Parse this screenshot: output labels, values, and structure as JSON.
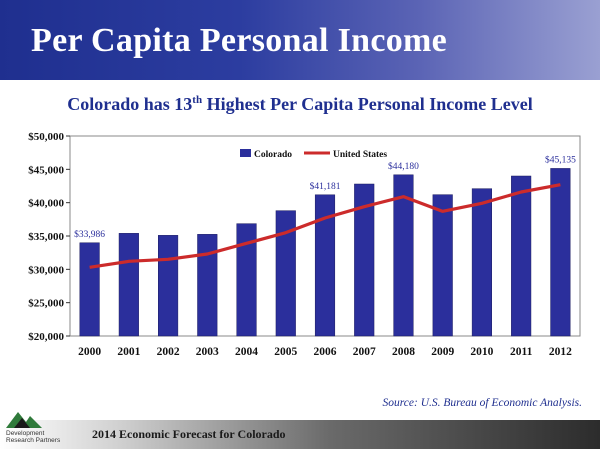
{
  "header": {
    "title": "Per Capita Personal Income"
  },
  "subtitle": {
    "prefix": "Colorado has 13",
    "sup": "th",
    "suffix": " Highest Per Capita Personal Income Level"
  },
  "source": "Source: U.S. Bureau of Economic Analysis.",
  "footer": {
    "text": "2014 Economic Forecast for Colorado",
    "logo_text": "Development Research Partners"
  },
  "colors": {
    "bar": "#2b2f9c",
    "line": "#cc2b2b",
    "title_band": "#1f2f8f"
  },
  "chart_data": {
    "type": "bar",
    "categories": [
      "2000",
      "2001",
      "2002",
      "2003",
      "2004",
      "2005",
      "2006",
      "2007",
      "2008",
      "2009",
      "2010",
      "2011",
      "2012"
    ],
    "series": [
      {
        "name": "Colorado",
        "type": "bar",
        "values": [
          33986,
          35400,
          35100,
          35250,
          36850,
          38800,
          41181,
          42800,
          44180,
          41200,
          42100,
          44000,
          45135
        ]
      },
      {
        "name": "United States",
        "type": "line",
        "values": [
          30300,
          31200,
          31500,
          32300,
          33900,
          35500,
          37700,
          39400,
          40900,
          38700,
          39900,
          41600,
          42700
        ]
      }
    ],
    "data_labels": [
      {
        "index": 0,
        "text": "$33,986"
      },
      {
        "index": 6,
        "text": "$41,181"
      },
      {
        "index": 8,
        "text": "$44,180"
      },
      {
        "index": 12,
        "text": "$45,135"
      }
    ],
    "y_ticks": [
      "$20,000",
      "$25,000",
      "$30,000",
      "$35,000",
      "$40,000",
      "$45,000",
      "$50,000"
    ],
    "ylim": [
      20000,
      50000
    ],
    "legend_position": "top-center",
    "grid": false
  }
}
